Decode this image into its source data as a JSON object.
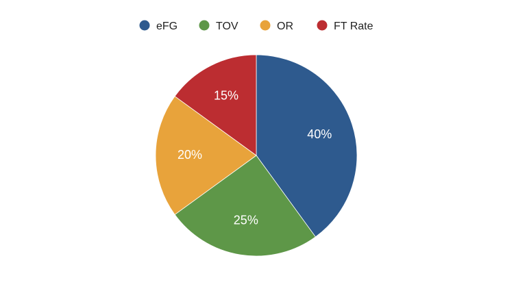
{
  "chart_data": {
    "type": "pie",
    "title": "",
    "legend_position": "top",
    "slices": [
      {
        "name": "eFG",
        "value": 40,
        "label": "40%",
        "color": "#2e5a8e"
      },
      {
        "name": "TOV",
        "value": 25,
        "label": "25%",
        "color": "#5e9748"
      },
      {
        "name": "OR",
        "value": 20,
        "label": "20%",
        "color": "#e8a33b"
      },
      {
        "name": "FT Rate",
        "value": 15,
        "label": "15%",
        "color": "#bc2d31"
      }
    ]
  }
}
